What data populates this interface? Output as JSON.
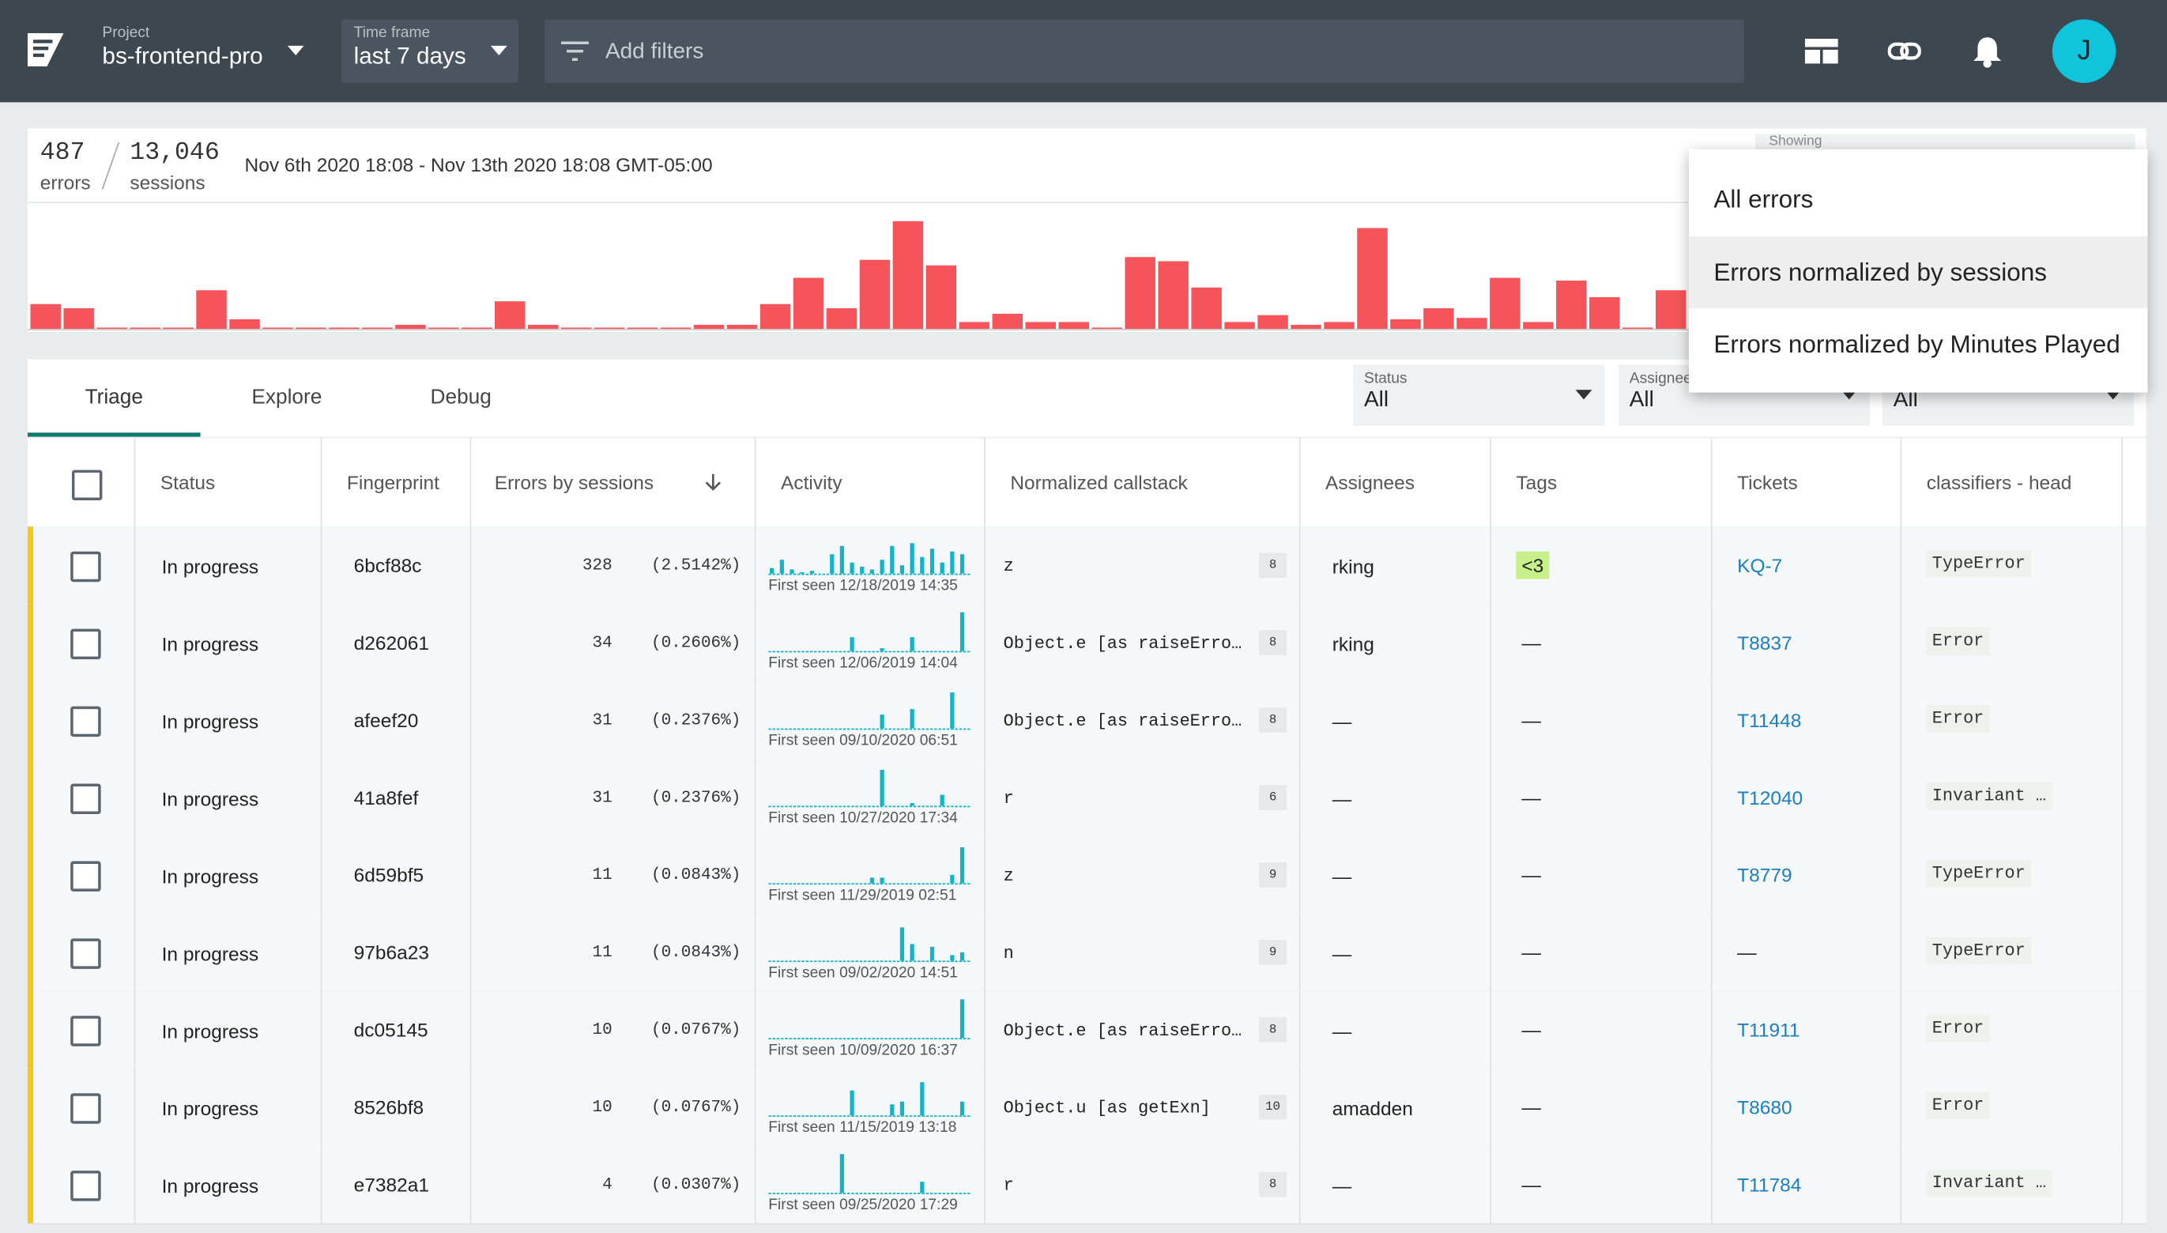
{
  "header": {
    "project_label": "Project",
    "project": "bs-frontend-pro",
    "timeframe_label": "Time frame",
    "timeframe": "last 7 days",
    "filter_placeholder": "Add filters",
    "avatar": "J"
  },
  "summary": {
    "errors": 487,
    "errors_label": "errors",
    "sessions": "13,046",
    "sessions_label": "sessions",
    "date_range": "Nov 6th 2020 18:08 - Nov 13th 2020 18:08 GMT-05:00",
    "showing_label": "Showing",
    "histogram": [
      18,
      15,
      1,
      1,
      1,
      28,
      7,
      1,
      1,
      1,
      1,
      3,
      1,
      1,
      20,
      3,
      1,
      1,
      1,
      1,
      3,
      3,
      18,
      37,
      15,
      50,
      78,
      46,
      5,
      11,
      5,
      5,
      1,
      52,
      49,
      30,
      5,
      10,
      3,
      5,
      73,
      7,
      15,
      8,
      37,
      5,
      35,
      23,
      1,
      28
    ]
  },
  "menu": {
    "items": [
      "All errors",
      "Errors normalized by sessions",
      "Errors normalized by Minutes Played"
    ],
    "selected": 1
  },
  "tabs": {
    "items": [
      "Triage",
      "Explore",
      "Debug"
    ],
    "active": 0
  },
  "filters": [
    {
      "label": "Status",
      "value": "All"
    },
    {
      "label": "Assignee",
      "value": "All"
    },
    {
      "value": "All"
    }
  ],
  "table": {
    "columns": [
      "Status",
      "Fingerprint",
      "Errors by sessions",
      "Activity",
      "Normalized callstack",
      "Assignees",
      "Tags",
      "Tickets",
      "classifiers - head"
    ],
    "rows": [
      {
        "status": "In progress",
        "fingerprint": "6bcf88c",
        "count": 328,
        "percent": "(2.5142%)",
        "activity": [
          4,
          10,
          3,
          1,
          2,
          0,
          14,
          20,
          8,
          5,
          3,
          10,
          20,
          6,
          22,
          12,
          18,
          8,
          16,
          14
        ],
        "first_seen": "First seen 12/18/2019 14:35",
        "callstack": "z",
        "callstack_count": 8,
        "assignee": "rking",
        "tag": "<3",
        "ticket": "KQ-7",
        "classifier": "TypeError"
      },
      {
        "status": "In progress",
        "fingerprint": "d262061",
        "count": 34,
        "percent": "(0.2606%)",
        "activity": [
          0,
          0,
          0,
          0,
          0,
          0,
          0,
          0,
          10,
          0,
          0,
          2,
          0,
          0,
          10,
          0,
          0,
          0,
          0,
          28
        ],
        "first_seen": "First seen 12/06/2019 14:04",
        "callstack": "Object.e [as raiseErro…",
        "callstack_count": 8,
        "assignee": "rking",
        "tag": "—",
        "ticket": "T8837",
        "classifier": "Error"
      },
      {
        "status": "In progress",
        "fingerprint": "afeef20",
        "count": 31,
        "percent": "(0.2376%)",
        "activity": [
          0,
          0,
          0,
          0,
          0,
          0,
          0,
          0,
          0,
          0,
          0,
          10,
          0,
          0,
          14,
          0,
          0,
          0,
          26,
          0
        ],
        "first_seen": "First seen 09/10/2020 06:51",
        "callstack": "Object.e [as raiseErro…",
        "callstack_count": 8,
        "assignee": "—",
        "tag": "—",
        "ticket": "T11448",
        "classifier": "Error"
      },
      {
        "status": "In progress",
        "fingerprint": "41a8fef",
        "count": 31,
        "percent": "(0.2376%)",
        "activity": [
          0,
          0,
          0,
          0,
          0,
          0,
          0,
          0,
          0,
          0,
          0,
          26,
          0,
          0,
          2,
          0,
          0,
          8,
          0,
          0
        ],
        "first_seen": "First seen 10/27/2020 17:34",
        "callstack": "r",
        "callstack_count": 6,
        "assignee": "—",
        "tag": "—",
        "ticket": "T12040",
        "classifier": "Invariant …"
      },
      {
        "status": "In progress",
        "fingerprint": "6d59bf5",
        "count": 11,
        "percent": "(0.0843%)",
        "activity": [
          0,
          0,
          0,
          0,
          0,
          0,
          0,
          0,
          0,
          0,
          4,
          4,
          0,
          0,
          0,
          0,
          0,
          0,
          6,
          26
        ],
        "first_seen": "First seen 11/29/2019 02:51",
        "callstack": "z",
        "callstack_count": 9,
        "assignee": "—",
        "tag": "—",
        "ticket": "T8779",
        "classifier": "TypeError"
      },
      {
        "status": "In progress",
        "fingerprint": "97b6a23",
        "count": 11,
        "percent": "(0.0843%)",
        "activity": [
          0,
          0,
          0,
          0,
          0,
          0,
          0,
          0,
          0,
          0,
          0,
          0,
          0,
          24,
          12,
          0,
          10,
          0,
          4,
          6
        ],
        "first_seen": "First seen 09/02/2020 14:51",
        "callstack": "n",
        "callstack_count": 9,
        "assignee": "—",
        "tag": "—",
        "ticket": "—",
        "classifier": "TypeError"
      },
      {
        "status": "In progress",
        "fingerprint": "dc05145",
        "count": 10,
        "percent": "(0.0767%)",
        "activity": [
          0,
          0,
          0,
          0,
          0,
          0,
          0,
          0,
          0,
          0,
          0,
          0,
          0,
          0,
          0,
          0,
          0,
          0,
          0,
          28
        ],
        "first_seen": "First seen 10/09/2020 16:37",
        "callstack": "Object.e [as raiseErro…",
        "callstack_count": 8,
        "assignee": "—",
        "tag": "—",
        "ticket": "T11911",
        "classifier": "Error"
      },
      {
        "status": "In progress",
        "fingerprint": "8526bf8",
        "count": 10,
        "percent": "(0.0767%)",
        "activity": [
          0,
          0,
          0,
          0,
          0,
          0,
          0,
          0,
          18,
          0,
          0,
          0,
          8,
          10,
          0,
          24,
          0,
          0,
          0,
          10
        ],
        "first_seen": "First seen 11/15/2019 13:18",
        "callstack": "Object.u [as getExn]",
        "callstack_count": 10,
        "assignee": "amadden",
        "tag": "—",
        "ticket": "T8680",
        "classifier": "Error"
      },
      {
        "status": "In progress",
        "fingerprint": "e7382a1",
        "count": 4,
        "percent": "(0.0307%)",
        "activity": [
          0,
          0,
          0,
          0,
          0,
          0,
          0,
          28,
          0,
          0,
          0,
          0,
          0,
          0,
          0,
          8,
          0,
          0,
          0,
          0
        ],
        "first_seen": "First seen 09/25/2020 17:29",
        "callstack": "r",
        "callstack_count": 8,
        "assignee": "—",
        "tag": "—",
        "ticket": "T11784",
        "classifier": "Invariant …"
      }
    ]
  }
}
